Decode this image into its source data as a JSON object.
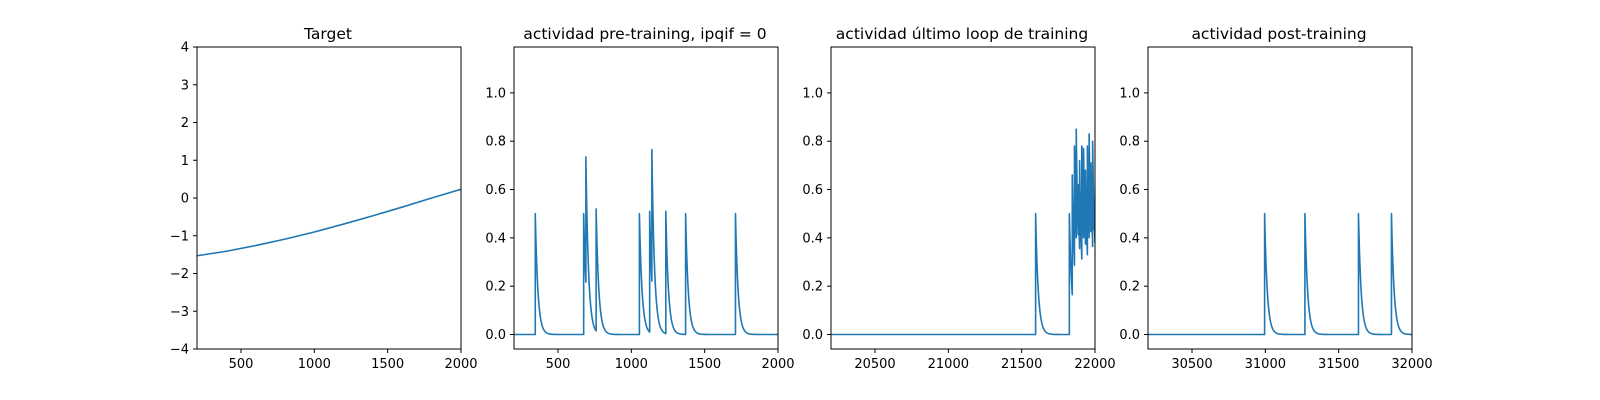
{
  "chart_data": [
    {
      "type": "line",
      "title": "Target",
      "xlabel": "",
      "ylabel": "",
      "xlim": [
        200,
        2000
      ],
      "ylim": [
        -4,
        4
      ],
      "xticks": [
        500,
        1000,
        1500,
        2000
      ],
      "yticks": [
        -4,
        -3,
        -2,
        -1,
        0,
        1,
        2,
        3,
        4
      ],
      "xtick_labels": [
        "500",
        "1000",
        "1500",
        "2000"
      ],
      "ytick_labels": [
        "−4",
        "−3",
        "−2",
        "−1",
        "0",
        "1",
        "2",
        "3",
        "4"
      ],
      "grid": false,
      "color": "#1f77b4",
      "series": [
        {
          "x": [
            200,
            400,
            600,
            800,
            1000,
            1200,
            1400,
            1600,
            1800,
            2000
          ],
          "y": [
            -1.53,
            -1.41,
            -1.26,
            -1.09,
            -0.9,
            -0.69,
            -0.47,
            -0.24,
            0.0,
            0.23
          ]
        }
      ]
    },
    {
      "type": "line",
      "title": "actividad pre-training, ipqif = 0",
      "xlabel": "",
      "ylabel": "",
      "xlim": [
        200,
        2000
      ],
      "ylim": [
        -0.06,
        1.19
      ],
      "xticks": [
        500,
        1000,
        1500,
        2000
      ],
      "yticks": [
        0.0,
        0.2,
        0.4,
        0.6,
        0.8,
        1.0
      ],
      "xtick_labels": [
        "500",
        "1000",
        "1500",
        "2000"
      ],
      "ytick_labels": [
        "0.0",
        "0.2",
        "0.4",
        "0.6",
        "0.8",
        "1.0"
      ],
      "grid": false,
      "color": "#1f77b4",
      "spikes": [
        {
          "t": 345,
          "peak": 0.5
        },
        {
          "t": 675,
          "peak": 0.5
        },
        {
          "t": 690,
          "peak": 0.735
        },
        {
          "t": 760,
          "peak": 0.52
        },
        {
          "t": 1055,
          "peak": 0.5
        },
        {
          "t": 1125,
          "peak": 0.51
        },
        {
          "t": 1140,
          "peak": 0.765
        },
        {
          "t": 1235,
          "peak": 0.51
        },
        {
          "t": 1370,
          "peak": 0.5
        },
        {
          "t": 1710,
          "peak": 0.5
        }
      ],
      "decay_tau": 18
    },
    {
      "type": "line",
      "title": "actividad último loop de training",
      "xlabel": "",
      "ylabel": "",
      "xlim": [
        20200,
        22000
      ],
      "ylim": [
        -0.06,
        1.19
      ],
      "xticks": [
        20500,
        21000,
        21500,
        22000
      ],
      "yticks": [
        0.0,
        0.2,
        0.4,
        0.6,
        0.8,
        1.0
      ],
      "xtick_labels": [
        "20500",
        "21000",
        "21500",
        "22000"
      ],
      "ytick_labels": [
        "0.0",
        "0.2",
        "0.4",
        "0.6",
        "0.8",
        "1.0"
      ],
      "grid": false,
      "color": "#1f77b4",
      "spikes": [
        {
          "t": 21595,
          "peak": 0.5
        },
        {
          "t": 21825,
          "peak": 0.5
        },
        {
          "t": 21845,
          "peak": 0.66
        },
        {
          "t": 21860,
          "peak": 0.78
        },
        {
          "t": 21872,
          "peak": 0.85
        },
        {
          "t": 21885,
          "peak": 0.62
        },
        {
          "t": 21895,
          "peak": 0.72
        },
        {
          "t": 21910,
          "peak": 0.78
        },
        {
          "t": 21922,
          "peak": 0.77
        },
        {
          "t": 21935,
          "peak": 0.68
        },
        {
          "t": 21948,
          "peak": 0.78
        },
        {
          "t": 21960,
          "peak": 0.83
        },
        {
          "t": 21972,
          "peak": 0.71
        },
        {
          "t": 21984,
          "peak": 0.8
        },
        {
          "t": 21995,
          "peak": 0.5
        }
      ],
      "decay_tau": 18
    },
    {
      "type": "line",
      "title": "actividad post-training",
      "xlabel": "",
      "ylabel": "",
      "xlim": [
        30200,
        32000
      ],
      "ylim": [
        -0.06,
        1.19
      ],
      "xticks": [
        30500,
        31000,
        31500,
        32000
      ],
      "yticks": [
        0.0,
        0.2,
        0.4,
        0.6,
        0.8,
        1.0
      ],
      "xtick_labels": [
        "30500",
        "31000",
        "31500",
        "32000"
      ],
      "ytick_labels": [
        "0.0",
        "0.2",
        "0.4",
        "0.6",
        "0.8",
        "1.0"
      ],
      "grid": false,
      "color": "#1f77b4",
      "spikes": [
        {
          "t": 30995,
          "peak": 0.5
        },
        {
          "t": 31270,
          "peak": 0.5
        },
        {
          "t": 31635,
          "peak": 0.5
        },
        {
          "t": 31860,
          "peak": 0.5
        }
      ],
      "decay_tau": 18
    }
  ]
}
